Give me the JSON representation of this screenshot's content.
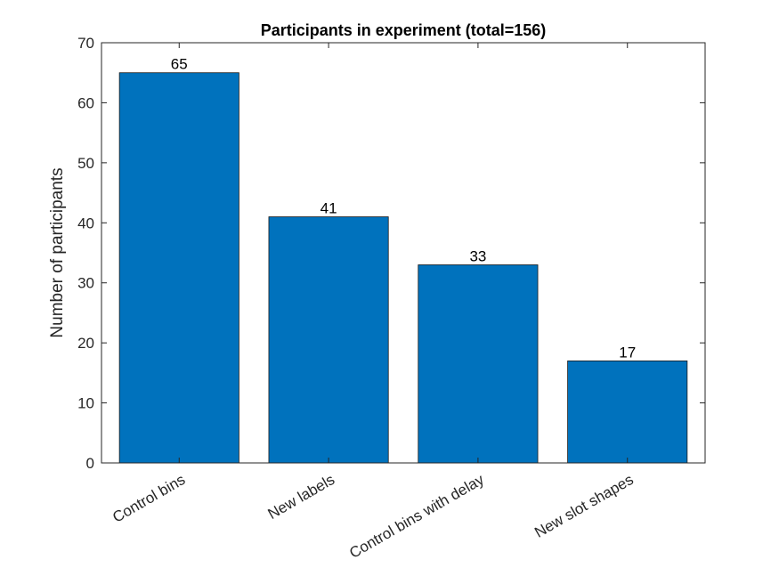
{
  "chart_data": {
    "type": "bar",
    "title": "Participants in experiment (total=156)",
    "xlabel": "",
    "ylabel": "Number of participants",
    "categories": [
      "Control bins",
      "New labels",
      "Control bins with delay",
      "New slot shapes"
    ],
    "values": [
      65,
      41,
      33,
      17
    ],
    "data_labels": [
      "65",
      "41",
      "33",
      "17"
    ],
    "ylim": [
      0,
      70
    ],
    "yticks": [
      0,
      10,
      20,
      30,
      40,
      50,
      60,
      70
    ],
    "ytick_labels": [
      "0",
      "10",
      "20",
      "30",
      "40",
      "50",
      "60",
      "70"
    ],
    "grid": false,
    "legend": "none",
    "colors": {
      "bar": "#0072BD",
      "bar_edge": "#1a1a1a",
      "axis": "#262626"
    }
  }
}
